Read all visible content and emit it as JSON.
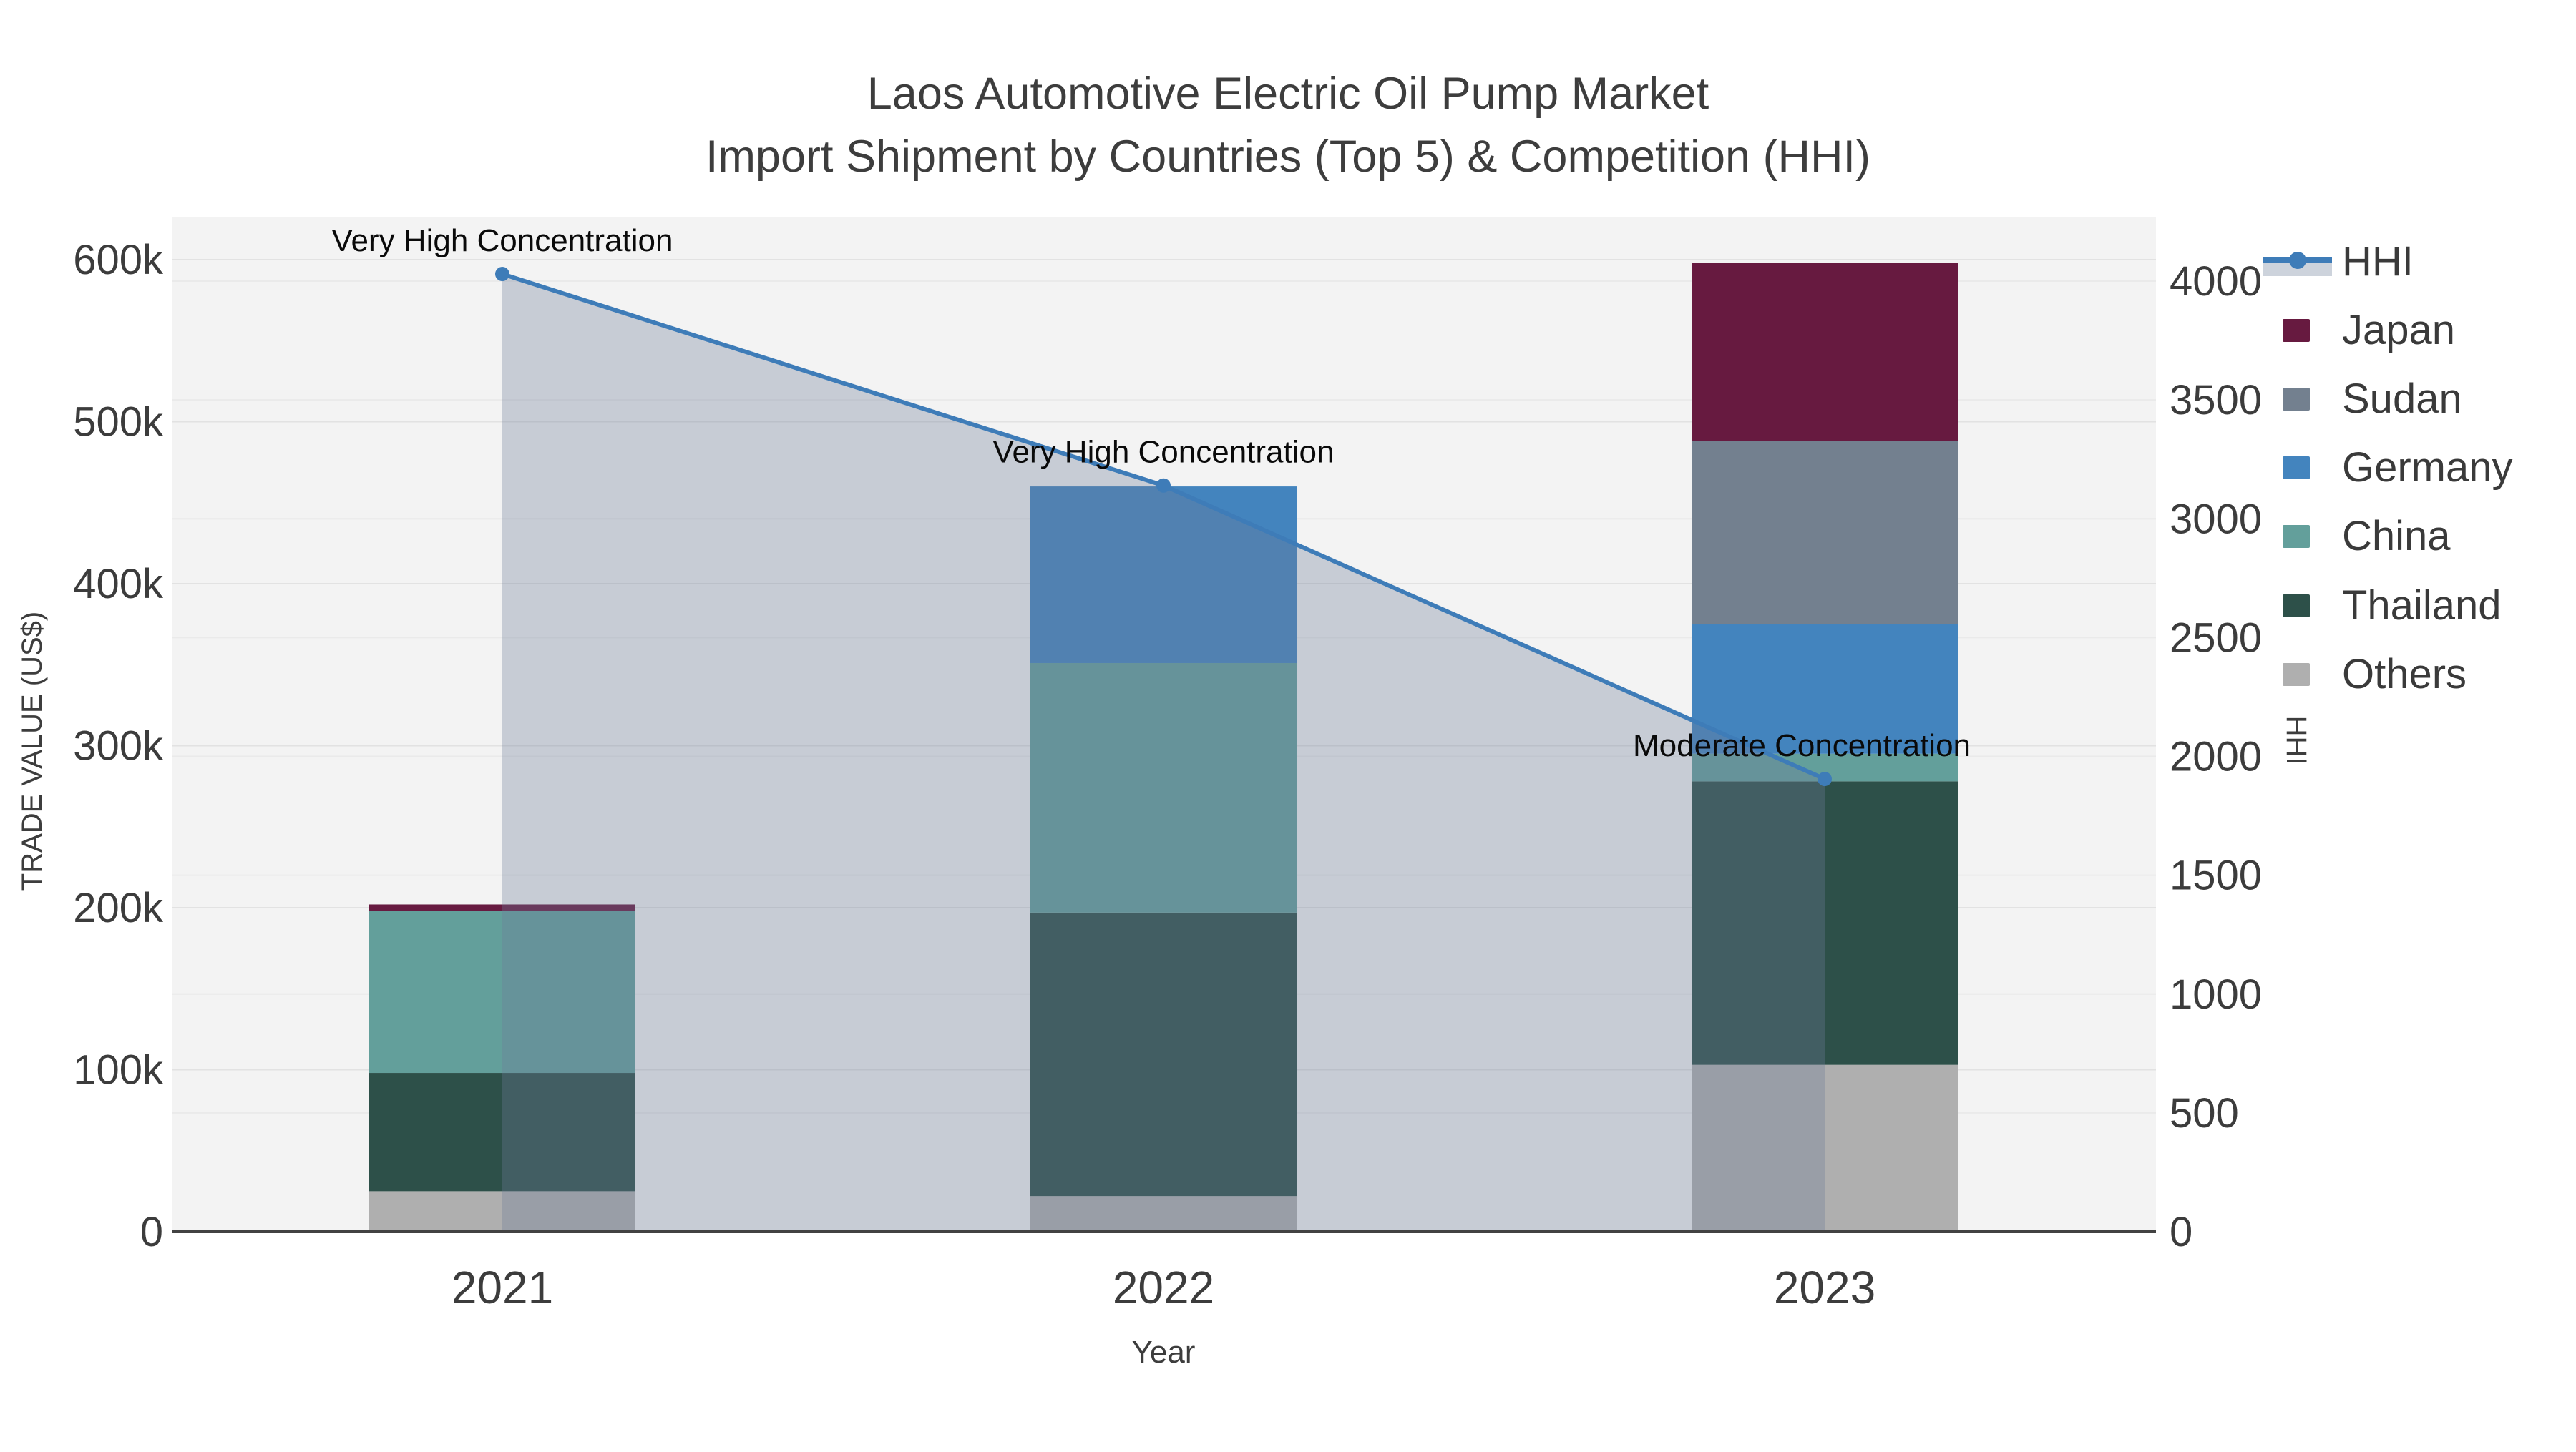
{
  "title": {
    "line1": "Laos Automotive Electric Oil Pump Market",
    "line2": "Import Shipment by Countries (Top 5) & Competition (HHI)"
  },
  "axes": {
    "x": {
      "label": "Year"
    },
    "y_left": {
      "label": "TRADE VALUE (US$)",
      "ticks": [
        "0",
        "100k",
        "200k",
        "300k",
        "400k",
        "500k",
        "600k"
      ],
      "tick_values": [
        0,
        100000,
        200000,
        300000,
        400000,
        500000,
        600000
      ],
      "max": 600000
    },
    "y_right": {
      "label": "HHI",
      "ticks": [
        "0",
        "500",
        "1000",
        "1500",
        "2000",
        "2500",
        "3000",
        "3500",
        "4000"
      ],
      "tick_values": [
        0,
        500,
        1000,
        1500,
        2000,
        2500,
        3000,
        3500,
        4000
      ],
      "max": 4000
    }
  },
  "chart_data": {
    "type": "bar",
    "subtype": "stacked-bar-with-line",
    "title": "Laos Automotive Electric Oil Pump Market — Import Shipment by Countries (Top 5) & Competition (HHI)",
    "categories": [
      "2021",
      "2022",
      "2023"
    ],
    "series": [
      {
        "name": "Others",
        "type": "bar",
        "color": "#AFAFAF",
        "values": [
          25000,
          22000,
          103000
        ]
      },
      {
        "name": "Thailand",
        "type": "bar",
        "color": "#2D5049",
        "values": [
          73000,
          175000,
          175000
        ]
      },
      {
        "name": "China",
        "type": "bar",
        "color": "#639F9B",
        "values": [
          100000,
          154000,
          17000
        ]
      },
      {
        "name": "Germany",
        "type": "bar",
        "color": "#4384BE",
        "values": [
          0,
          109000,
          80000
        ]
      },
      {
        "name": "Sudan",
        "type": "bar",
        "color": "#73808F",
        "values": [
          0,
          0,
          113000
        ]
      },
      {
        "name": "Japan",
        "type": "bar",
        "color": "#671A40",
        "values": [
          4000,
          0,
          110000
        ]
      }
    ],
    "line_series": {
      "name": "HHI",
      "axis": "right",
      "color": "#3E7CB8",
      "fill_color": "rgba(110,125,152,0.33)",
      "values": [
        4030,
        3140,
        1905
      ]
    },
    "annotations": [
      {
        "category": "2021",
        "text": "Very High Concentration"
      },
      {
        "category": "2022",
        "text": "Very High Concentration"
      },
      {
        "category": "2023",
        "text": "Moderate Concentration"
      }
    ],
    "legend": [
      "HHI",
      "Japan",
      "Sudan",
      "Germany",
      "China",
      "Thailand",
      "Others"
    ],
    "xlabel": "Year",
    "ylabel": "TRADE VALUE (US$)",
    "ylabel_right": "HHI",
    "ylim_left": [
      0,
      620000
    ],
    "ylim_right": [
      0,
      4200
    ],
    "grid": true,
    "legend_position": "right"
  },
  "colors": {
    "plot_bg": "#F3F3F3",
    "grid_left": "#E2E2E2",
    "grid_right": "#EAEAEA",
    "axis_line": "#424242",
    "tick_text": "#3C3C3C",
    "title_text": "#3D3D3D",
    "annotation_text": "#0A0A0A",
    "legend_text": "#3A3A3A",
    "hhi_legend_band": "#CDD3DC"
  }
}
